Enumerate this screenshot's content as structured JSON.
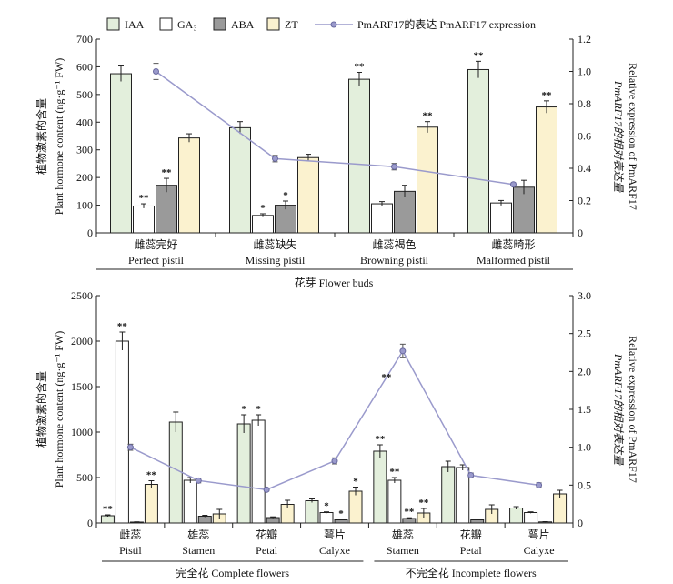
{
  "legend": {
    "items": [
      "IAA",
      "GA₃",
      "ABA",
      "ZT"
    ],
    "line_label": "PmARF17的表达 PmARF17 expression"
  },
  "colors": {
    "IAA": "#e3efdc",
    "GA3": "#ffffff",
    "ABA": "#9a9a9a",
    "ZT": "#fbf2cf",
    "line": "#9a9acc"
  },
  "chart_data": [
    {
      "type": "bar",
      "ylabel_cn": "植物激素的含量",
      "ylabel_en": "Plant hormone content (ng·g⁻¹ FW)",
      "y2label_cn": "PmARF17的相对表达量",
      "y2label_en": "Relative expression of PmARF17",
      "ylim": [
        0,
        700
      ],
      "yticks": [
        "0",
        "100",
        "200",
        "300",
        "400",
        "500",
        "600",
        "700"
      ],
      "y2lim": [
        0,
        1.2
      ],
      "y2ticks": [
        "0",
        "0.2",
        "0.4",
        "0.6",
        "0.8",
        "1.0",
        "1.2"
      ],
      "categories_cn": [
        "雌蕊完好",
        "雌蕊缺失",
        "雌蕊褐色",
        "雌蕊畸形"
      ],
      "categories_en": [
        "Perfect pistil",
        "Missing pistil",
        "Browning pistil",
        "Malformed pistil"
      ],
      "group_label": "花芽 Flower buds",
      "series": [
        {
          "name": "IAA",
          "values": [
            575,
            380,
            555,
            590
          ],
          "errors": [
            28,
            22,
            25,
            30
          ],
          "stars": [
            "",
            "",
            "**",
            "**"
          ]
        },
        {
          "name": "GA₃",
          "values": [
            97,
            63,
            105,
            108
          ],
          "errors": [
            8,
            6,
            8,
            9
          ],
          "stars": [
            "**",
            "*",
            "",
            ""
          ]
        },
        {
          "name": "ABA",
          "values": [
            172,
            100,
            150,
            165
          ],
          "errors": [
            25,
            15,
            22,
            25
          ],
          "stars": [
            "**",
            "*",
            "",
            ""
          ]
        },
        {
          "name": "ZT",
          "values": [
            343,
            272,
            382,
            455
          ],
          "errors": [
            15,
            12,
            20,
            22
          ],
          "stars": [
            "",
            "",
            "**",
            "**"
          ]
        }
      ],
      "line": {
        "name": "PmARF17 expression",
        "values": [
          1.0,
          0.46,
          0.41,
          0.3
        ],
        "errors": [
          0.05,
          0.02,
          0.02,
          0.01
        ]
      }
    },
    {
      "type": "bar",
      "ylabel_cn": "植物激素的含量",
      "ylabel_en": "Plant hormone content (ng·g⁻¹ FW)",
      "y2label_cn": "PmARF17的相对表达量",
      "y2label_en": "Relative expression of PmARF17",
      "ylim": [
        0,
        2500
      ],
      "yticks": [
        "0",
        "500",
        "1000",
        "1500",
        "2000",
        "2500"
      ],
      "y2lim": [
        0,
        3.0
      ],
      "y2ticks": [
        "0",
        "0.5",
        "1.0",
        "1.5",
        "2.0",
        "2.5",
        "3.0"
      ],
      "categories_cn": [
        "雌蕊",
        "雄蕊",
        "花瓣",
        "萼片",
        "雄蕊",
        "花瓣",
        "萼片"
      ],
      "categories_en": [
        "Pistil",
        "Stamen",
        "Petal",
        "Calyxe",
        "Stamen",
        "Petal",
        "Calyxe"
      ],
      "groups": [
        {
          "label": "完全花 Complete flowers",
          "from": 0,
          "to": 3
        },
        {
          "label": "不完全花 Incomplete flowers",
          "from": 4,
          "to": 6
        }
      ],
      "series": [
        {
          "name": "IAA",
          "values": [
            80,
            1110,
            1090,
            245,
            790,
            620,
            165
          ],
          "errors": [
            10,
            110,
            100,
            20,
            70,
            60,
            15
          ],
          "stars": [
            "**",
            "",
            "*",
            "",
            "**",
            "",
            ""
          ]
        },
        {
          "name": "GA₃",
          "values": [
            2000,
            470,
            1130,
            115,
            470,
            610,
            115
          ],
          "errors": [
            100,
            30,
            60,
            8,
            30,
            30,
            8
          ],
          "stars": [
            "**",
            "",
            "*",
            "*",
            "**",
            "",
            ""
          ]
        },
        {
          "name": "ABA",
          "values": [
            10,
            75,
            60,
            35,
            50,
            35,
            12
          ],
          "errors": [
            3,
            10,
            8,
            5,
            8,
            5,
            3
          ],
          "stars": [
            "",
            "",
            "",
            "*",
            "**",
            "",
            ""
          ]
        },
        {
          "name": "ZT",
          "values": [
            425,
            100,
            205,
            350,
            110,
            150,
            320
          ],
          "errors": [
            40,
            50,
            45,
            45,
            50,
            50,
            40
          ],
          "stars": [
            "**",
            "",
            "",
            "*",
            "**",
            "",
            ""
          ]
        }
      ],
      "line": {
        "name": "PmARF17 expression",
        "values": [
          1.0,
          0.56,
          0.44,
          0.82,
          2.27,
          0.63,
          0.5
        ],
        "errors": [
          0.04,
          0.03,
          0.02,
          0.04,
          0.09,
          0.03,
          0.03
        ],
        "annotations": [
          {
            "index": 4,
            "text": "**"
          }
        ]
      }
    }
  ]
}
